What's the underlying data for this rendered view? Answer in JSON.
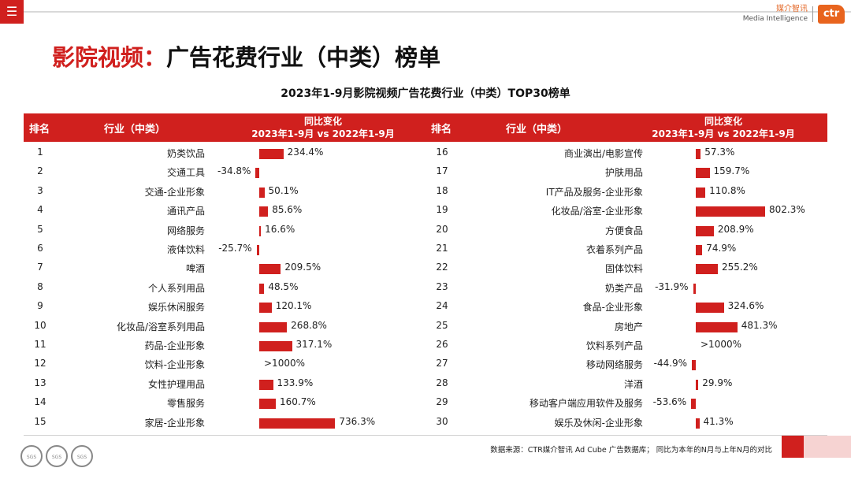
{
  "header": {
    "menu_icon": "☰",
    "brand_cn": "媒介智讯",
    "brand_en": "Media Intelligence",
    "brand_logo": "ctr"
  },
  "title": {
    "part1": "影院视频：",
    "part2": "广告花费行业（中类）榜单"
  },
  "chart_data": {
    "type": "bar",
    "title": "2023年1-9月影院视频广告花费行业（中类）TOP30榜单",
    "columns": {
      "rank": "排名",
      "industry": "行业（中类）",
      "change_line1": "同比变化",
      "change_line2": "2023年1-9月 vs 2022年1-9月"
    },
    "rows": [
      {
        "rank": "1",
        "industry": "奶类饮品",
        "value": 234.4,
        "label": "234.4%"
      },
      {
        "rank": "2",
        "industry": "交通工具",
        "value": -34.8,
        "label": "-34.8%"
      },
      {
        "rank": "3",
        "industry": "交通-企业形象",
        "value": 50.1,
        "label": "50.1%"
      },
      {
        "rank": "4",
        "industry": "通讯产品",
        "value": 85.6,
        "label": "85.6%"
      },
      {
        "rank": "5",
        "industry": "网络服务",
        "value": 16.6,
        "label": "16.6%"
      },
      {
        "rank": "6",
        "industry": "液体饮料",
        "value": -25.7,
        "label": "-25.7%"
      },
      {
        "rank": "7",
        "industry": "啤酒",
        "value": 209.5,
        "label": "209.5%"
      },
      {
        "rank": "8",
        "industry": "个人系列用品",
        "value": 48.5,
        "label": "48.5%"
      },
      {
        "rank": "9",
        "industry": "娱乐休闲服务",
        "value": 120.1,
        "label": "120.1%"
      },
      {
        "rank": "10",
        "industry": "化妆品/浴室系列用品",
        "value": 268.8,
        "label": "268.8%"
      },
      {
        "rank": "11",
        "industry": "药品-企业形象",
        "value": 317.1,
        "label": "317.1%"
      },
      {
        "rank": "12",
        "industry": "饮料-企业形象",
        "value": null,
        "label": ">1000%"
      },
      {
        "rank": "13",
        "industry": "女性护理用品",
        "value": 133.9,
        "label": "133.9%"
      },
      {
        "rank": "14",
        "industry": "零售服务",
        "value": 160.7,
        "label": "160.7%"
      },
      {
        "rank": "15",
        "industry": "家居-企业形象",
        "value": 736.3,
        "label": "736.3%"
      },
      {
        "rank": "16",
        "industry": "商业演出/电影宣传",
        "value": 57.3,
        "label": "57.3%"
      },
      {
        "rank": "17",
        "industry": "护肤用品",
        "value": 159.7,
        "label": "159.7%"
      },
      {
        "rank": "18",
        "industry": "IT产品及服务-企业形象",
        "value": 110.8,
        "label": "110.8%"
      },
      {
        "rank": "19",
        "industry": "化妆品/浴室-企业形象",
        "value": 802.3,
        "label": "802.3%"
      },
      {
        "rank": "20",
        "industry": "方便食品",
        "value": 208.9,
        "label": "208.9%"
      },
      {
        "rank": "21",
        "industry": "衣着系列产品",
        "value": 74.9,
        "label": "74.9%"
      },
      {
        "rank": "22",
        "industry": "固体饮料",
        "value": 255.2,
        "label": "255.2%"
      },
      {
        "rank": "23",
        "industry": "奶类产品",
        "value": -31.9,
        "label": "-31.9%"
      },
      {
        "rank": "24",
        "industry": "食品-企业形象",
        "value": 324.6,
        "label": "324.6%"
      },
      {
        "rank": "25",
        "industry": "房地产",
        "value": 481.3,
        "label": "481.3%"
      },
      {
        "rank": "26",
        "industry": "饮料系列产品",
        "value": null,
        "label": ">1000%"
      },
      {
        "rank": "27",
        "industry": "移动网络服务",
        "value": -44.9,
        "label": "-44.9%"
      },
      {
        "rank": "28",
        "industry": "洋酒",
        "value": 29.9,
        "label": "29.9%"
      },
      {
        "rank": "29",
        "industry": "移动客户端应用软件及服务",
        "value": -53.6,
        "label": "-53.6%"
      },
      {
        "rank": "30",
        "industry": "娱乐及休闲-企业形象",
        "value": 41.3,
        "label": "41.3%"
      }
    ]
  },
  "footer": {
    "source": "数据来源：CTR媒介智讯 Ad Cube 广告数据库； 同比为本年的N月与上年N月的对比",
    "cert_label": "SGS"
  },
  "colors": {
    "accent": "#d0201e",
    "brand_orange": "#e8641e"
  }
}
